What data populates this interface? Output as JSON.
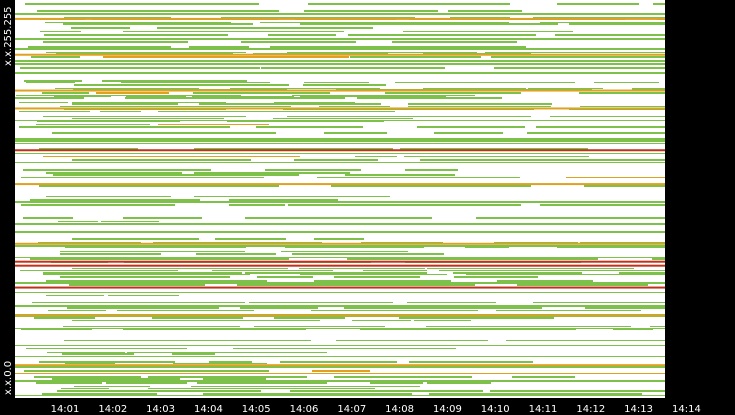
{
  "chart_data": {
    "type": "heatmap",
    "title": "",
    "xlabel": "",
    "ylabel": "",
    "x_ticks": [
      "14:01",
      "14:02",
      "14:03",
      "14:04",
      "14:05",
      "14:06",
      "14:07",
      "14:08",
      "14:09",
      "14:10",
      "14:11",
      "14:12",
      "14:13",
      "14:14"
    ],
    "y_ticks": [
      "x.x.255.255",
      "x.x.0.0"
    ],
    "y_range": [
      "x.x.0.0",
      "x.x.255.255"
    ],
    "grid": false,
    "legend": "none",
    "colors": {
      "background": "#ffffff",
      "frame": "#000000",
      "low": "#7dc14a",
      "mid": "#e0a020",
      "high": "#c0301a",
      "text": "#ffffff"
    },
    "notable_bands": [
      {
        "row_fraction": 0.045,
        "level": "mid"
      },
      {
        "row_fraction": 0.135,
        "level": "mid"
      },
      {
        "row_fraction": 0.225,
        "level": "mid"
      },
      {
        "row_fraction": 0.27,
        "level": "mid"
      },
      {
        "row_fraction": 0.375,
        "level": "high"
      },
      {
        "row_fraction": 0.46,
        "level": "mid"
      },
      {
        "row_fraction": 0.61,
        "level": "mid"
      },
      {
        "row_fraction": 0.655,
        "level": "high"
      },
      {
        "row_fraction": 0.665,
        "level": "high"
      },
      {
        "row_fraction": 0.72,
        "level": "high"
      },
      {
        "row_fraction": 0.79,
        "level": "mid"
      },
      {
        "row_fraction": 0.915,
        "level": "mid"
      }
    ]
  }
}
